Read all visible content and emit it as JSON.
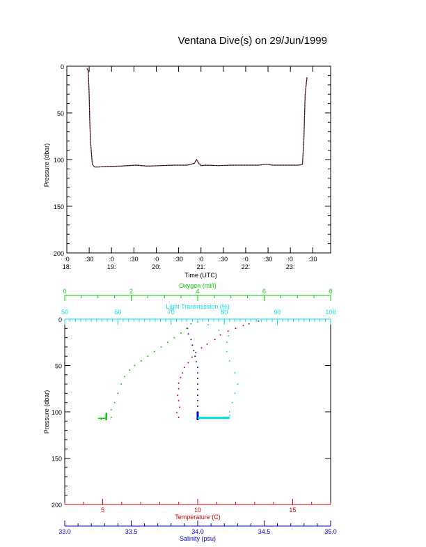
{
  "title": "Ventana Dive(s) on 29/Jun/1999",
  "colors": {
    "pressure_trace": "#d03030",
    "pressure_trace_dark": "#000000",
    "temperature": "#d00000",
    "oxygen": "#00cc00",
    "light_transmission": "#00e0e0",
    "salinity": "#0000c0",
    "axis": "#000000"
  },
  "chart_data": [
    {
      "type": "line",
      "title": "Ventana Dive(s) on 29/Jun/1999",
      "xlabel": "Time (UTC)",
      "ylabel": "Pressure (dbar)",
      "ylim": [
        200,
        0
      ],
      "y_ticks": [
        "0",
        "50",
        "100",
        "150",
        "200"
      ],
      "xlim_hours": [
        18.0,
        23.9
      ],
      "x_ticks": [
        {
          "value": 18.0,
          "minute": ":0",
          "hour": "18:"
        },
        {
          "value": 18.5,
          "minute": ":30",
          "hour": ""
        },
        {
          "value": 19.0,
          "minute": ":0",
          "hour": "19:"
        },
        {
          "value": 19.5,
          "minute": ":30",
          "hour": ""
        },
        {
          "value": 20.0,
          "minute": ":0",
          "hour": "20:"
        },
        {
          "value": 20.5,
          "minute": ":30",
          "hour": ""
        },
        {
          "value": 21.0,
          "minute": ":0",
          "hour": "21:"
        },
        {
          "value": 21.5,
          "minute": ":30",
          "hour": ""
        },
        {
          "value": 22.0,
          "minute": ":0",
          "hour": "22:"
        },
        {
          "value": 22.5,
          "minute": ":30",
          "hour": ""
        },
        {
          "value": 23.0,
          "minute": ":0",
          "hour": "23:"
        },
        {
          "value": 23.5,
          "minute": ":30",
          "hour": ""
        }
      ],
      "series": [
        {
          "x": [
            18.45,
            18.48,
            18.5,
            18.51,
            18.53,
            18.57,
            18.62,
            18.7,
            18.9,
            19.2,
            19.55,
            19.8,
            20.1,
            20.4,
            20.7,
            20.85,
            20.9,
            20.95,
            21.0,
            21.1,
            21.4,
            21.7,
            22.0,
            22.3,
            22.45,
            22.6,
            22.9,
            23.2,
            23.27,
            23.3,
            23.33,
            23.37
          ],
          "y": [
            2,
            5,
            30,
            55,
            80,
            105,
            108,
            108,
            107.5,
            107,
            106,
            107,
            106.5,
            106,
            106,
            104,
            100,
            104,
            106.5,
            106,
            106.5,
            106,
            106,
            106,
            105,
            106,
            106,
            106,
            105,
            80,
            30,
            12
          ]
        }
      ]
    },
    {
      "type": "scatter",
      "ylabel": "Pressure (dbar)",
      "ylim": [
        200,
        0
      ],
      "y_ticks": [
        "0",
        "50",
        "100",
        "150",
        "200"
      ],
      "axes": {
        "temperature": {
          "label": "Temperature (C)",
          "range": [
            3,
            17
          ],
          "ticks": [
            "5",
            "10",
            "15"
          ],
          "tick_values": [
            5,
            10,
            15
          ]
        },
        "salinity": {
          "label": "Salinity (psu)",
          "range": [
            33.0,
            35.0
          ],
          "ticks": [
            "33.0",
            "33.5",
            "34.0",
            "34.5",
            "35.0"
          ],
          "tick_values": [
            33.0,
            33.5,
            34.0,
            34.5,
            35.0
          ]
        },
        "oxygen": {
          "label": "Oxygen (ml/l)",
          "range": [
            0,
            8
          ],
          "ticks": [
            "0",
            "2",
            "4",
            "6",
            "8"
          ],
          "tick_values": [
            0,
            2,
            4,
            6,
            8
          ]
        },
        "light_transmission": {
          "label": "Light Transmission (%)",
          "range": [
            50,
            100
          ],
          "ticks": [
            "50",
            "60",
            "70",
            "80",
            "90",
            "100"
          ],
          "tick_values": [
            50,
            60,
            70,
            80,
            90,
            100
          ]
        }
      },
      "series": [
        {
          "axis": "temperature",
          "x": [
            13.2,
            12.7,
            12.4,
            12.0,
            11.6,
            11.2,
            10.9,
            10.5,
            10.2,
            9.9,
            9.7,
            9.5,
            9.3,
            9.2,
            9.1,
            9.0,
            9.0,
            8.95,
            9.0,
            9.05,
            8.9,
            9.0
          ],
          "y": [
            2,
            5,
            7,
            10,
            13,
            17,
            22,
            27,
            31,
            36,
            41,
            47,
            52,
            58,
            63,
            69,
            75,
            82,
            88,
            95,
            101,
            106
          ]
        },
        {
          "axis": "salinity",
          "x": [
            33.92,
            33.93,
            33.95,
            33.96,
            33.97,
            33.98,
            33.99,
            34.0,
            34.0,
            34.0,
            34.0,
            34.0,
            34.0,
            34.0,
            34.0,
            34.0,
            34.0
          ],
          "y": [
            10,
            16,
            22,
            28,
            34,
            40,
            46,
            52,
            58,
            64,
            70,
            76,
            82,
            88,
            94,
            100,
            106
          ]
        },
        {
          "axis": "oxygen",
          "x": [
            1.4,
            1.2,
            1.1,
            1.25,
            1.4,
            1.5,
            1.6,
            1.7,
            1.8,
            1.95,
            2.1,
            2.3,
            2.5,
            2.7,
            2.9,
            3.1,
            3.3,
            3.5,
            3.7,
            3.8
          ],
          "y": [
            106,
            107,
            108,
            105,
            98,
            90,
            80,
            70,
            62,
            55,
            50,
            45,
            40,
            35,
            30,
            25,
            20,
            15,
            10,
            5
          ]
        },
        {
          "axis": "light_transmission",
          "x": [
            75,
            77,
            79,
            80.5,
            81,
            81.5,
            82,
            82.5,
            82,
            81,
            80.5,
            80.5,
            80.8,
            79,
            77,
            75,
            81
          ],
          "y": [
            107,
            107,
            107,
            106,
            100,
            90,
            80,
            70,
            58,
            45,
            35,
            25,
            18,
            12,
            6,
            3,
            104
          ]
        }
      ]
    }
  ]
}
